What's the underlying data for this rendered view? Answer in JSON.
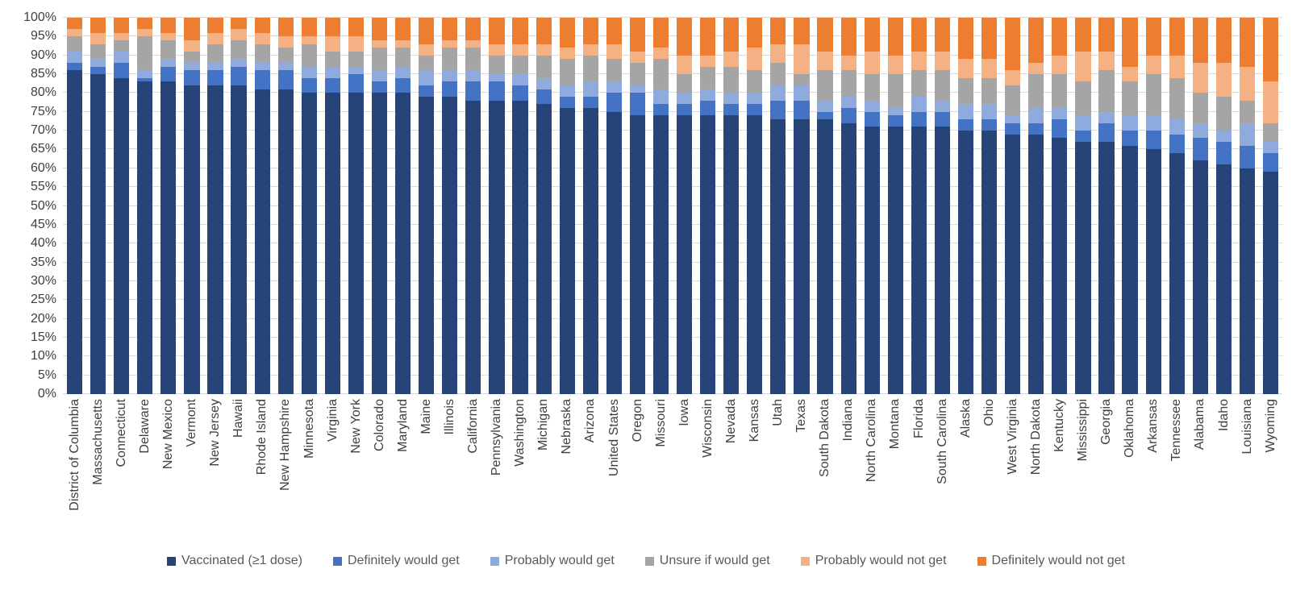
{
  "chart_data": {
    "type": "bar",
    "stacked": true,
    "stacking": "percent",
    "title": "",
    "xlabel": "",
    "ylabel": "",
    "ylim": [
      0,
      100
    ],
    "ytick_step": 5,
    "ytick_suffix": "%",
    "grid": true,
    "legend_position": "bottom",
    "categories": [
      "District of Columbia",
      "Massachusetts",
      "Connecticut",
      "Delaware",
      "New Mexico",
      "Vermont",
      "New Jersey",
      "Hawaii",
      "Rhode Island",
      "New Hampshire",
      "Minnesota",
      "Virginia",
      "New York",
      "Colorado",
      "Maryland",
      "Maine",
      "Illinois",
      "California",
      "Pennsylvania",
      "Washington",
      "Michigan",
      "Nebraska",
      "Arizona",
      "United States",
      "Oregon",
      "Missouri",
      "Iowa",
      "Wisconsin",
      "Nevada",
      "Kansas",
      "Utah",
      "Texas",
      "South Dakota",
      "Indiana",
      "North Carolina",
      "Montana",
      "Florida",
      "South Carolina",
      "Alaska",
      "Ohio",
      "West Virginia",
      "North Dakota",
      "Kentucky",
      "Mississippi",
      "Georgia",
      "Oklahoma",
      "Arkansas",
      "Tennessee",
      "Alabama",
      "Idaho",
      "Louisiana",
      "Wyoming"
    ],
    "series": [
      {
        "name": "Vaccinated (≥1 dose)",
        "color": "#264478",
        "values": [
          86,
          85,
          84,
          83,
          83,
          82,
          82,
          82,
          81,
          81,
          80,
          80,
          80,
          80,
          80,
          79,
          79,
          78,
          78,
          78,
          77,
          76,
          76,
          75,
          74,
          74,
          74,
          74,
          74,
          74,
          73,
          73,
          73,
          72,
          71,
          71,
          71,
          71,
          70,
          70,
          69,
          69,
          68,
          67,
          67,
          66,
          65,
          64,
          62,
          61,
          60,
          59
        ]
      },
      {
        "name": "Definitely would get",
        "color": "#4472C4",
        "values": [
          2,
          2,
          4,
          1,
          4,
          4,
          4,
          5,
          5,
          5,
          4,
          4,
          5,
          3,
          4,
          3,
          4,
          5,
          5,
          4,
          4,
          3,
          3,
          5,
          6,
          3,
          3,
          4,
          3,
          3,
          5,
          5,
          2,
          4,
          4,
          3,
          4,
          4,
          3,
          3,
          3,
          3,
          5,
          3,
          5,
          4,
          5,
          5,
          6,
          6,
          6,
          5
        ]
      },
      {
        "name": "Probably would get",
        "color": "#8FAADC",
        "values": [
          3,
          2,
          3,
          2,
          2,
          2,
          2,
          2,
          2,
          2,
          3,
          3,
          2,
          3,
          3,
          4,
          3,
          3,
          2,
          3,
          3,
          3,
          4,
          3,
          2,
          4,
          3,
          3,
          3,
          3,
          4,
          4,
          3,
          3,
          3,
          2,
          4,
          3,
          4,
          4,
          2,
          4,
          3,
          4,
          3,
          4,
          4,
          4,
          4,
          3,
          6,
          3
        ]
      },
      {
        "name": "Unsure if would get",
        "color": "#A5A5A5",
        "values": [
          4,
          4,
          3,
          9,
          5,
          3,
          5,
          5,
          5,
          4,
          6,
          4,
          4,
          6,
          5,
          4,
          6,
          6,
          5,
          5,
          6,
          7,
          7,
          6,
          6,
          8,
          5,
          6,
          7,
          6,
          6,
          3,
          8,
          7,
          7,
          9,
          7,
          8,
          7,
          7,
          8,
          9,
          9,
          9,
          11,
          9,
          11,
          11,
          8,
          9,
          6,
          5
        ]
      },
      {
        "name": "Probably would not get",
        "color": "#F4B183",
        "values": [
          2,
          3,
          2,
          2,
          2,
          3,
          3,
          3,
          3,
          3,
          2,
          4,
          4,
          2,
          2,
          3,
          2,
          2,
          3,
          3,
          3,
          3,
          3,
          4,
          3,
          3,
          5,
          3,
          4,
          6,
          5,
          8,
          5,
          4,
          6,
          5,
          5,
          5,
          5,
          5,
          4,
          3,
          5,
          8,
          5,
          4,
          5,
          6,
          8,
          9,
          9,
          11
        ]
      },
      {
        "name": "Definitely would not get",
        "color": "#ED7D31",
        "values": [
          3,
          4,
          4,
          3,
          4,
          6,
          4,
          3,
          4,
          5,
          5,
          5,
          5,
          6,
          6,
          7,
          6,
          6,
          7,
          7,
          7,
          8,
          7,
          7,
          9,
          8,
          10,
          10,
          9,
          8,
          7,
          7,
          9,
          10,
          9,
          10,
          9,
          9,
          11,
          11,
          14,
          12,
          10,
          9,
          9,
          13,
          10,
          10,
          12,
          12,
          13,
          17
        ]
      }
    ]
  },
  "colors": {
    "gridline": "#D9D9D9",
    "axis_text": "#404040",
    "legend_text": "#595959",
    "background": "#FFFFFF"
  }
}
